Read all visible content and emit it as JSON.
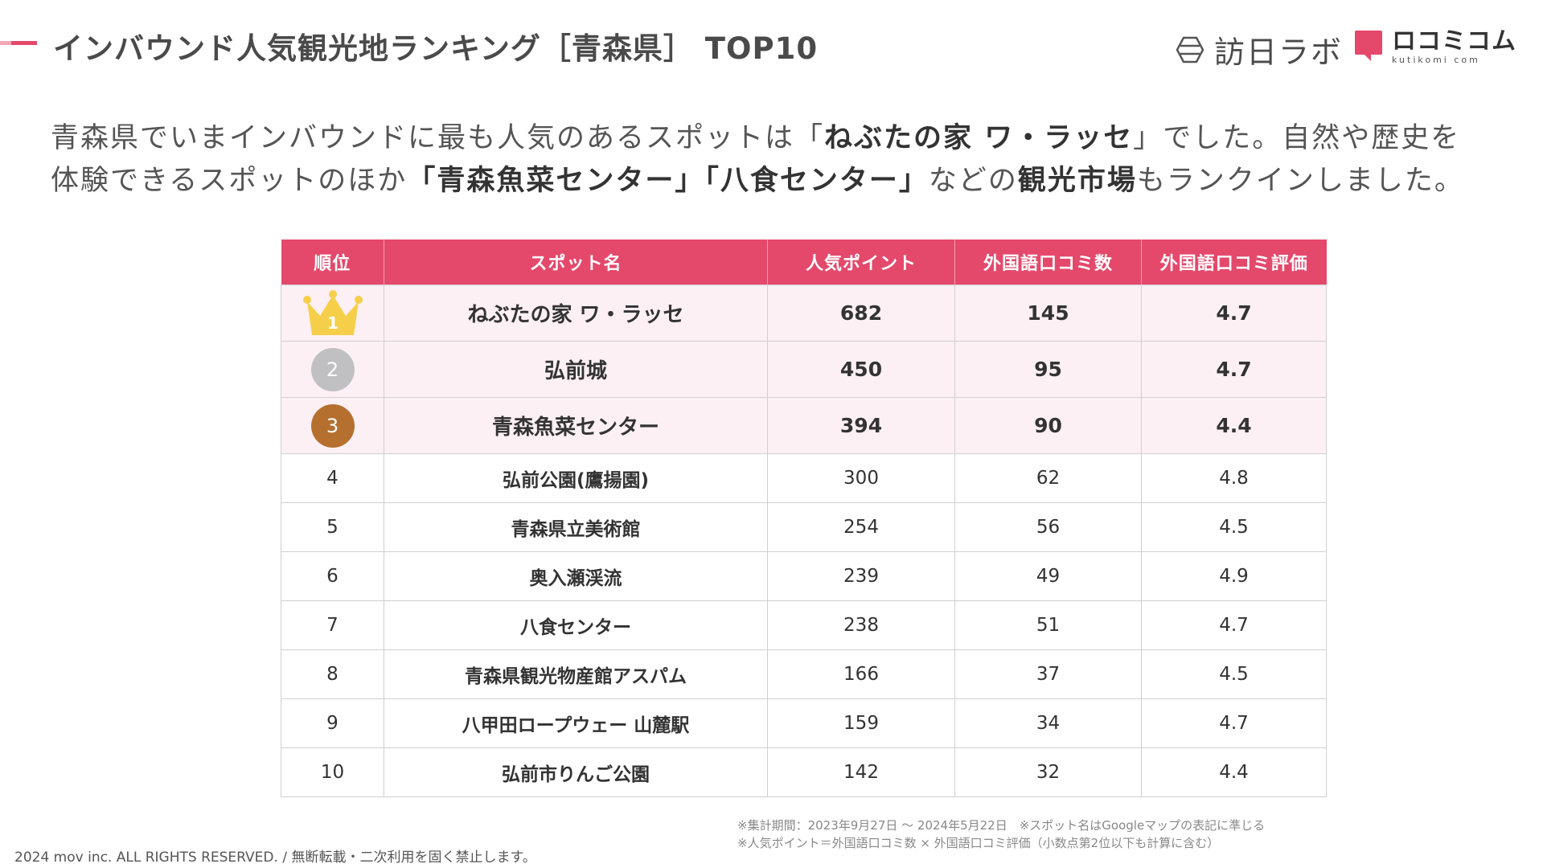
{
  "header": {
    "title": "インバウンド人気観光地ランキング［青森県］ TOP10",
    "logo_text": "訪日ラボ",
    "brand_main": "ロコミコム",
    "brand_sub": "kutikomi com",
    "accent_color": "#e4496c"
  },
  "lead": {
    "l1_a": "青森県でいまインバウンドに最も人気のあるスポットは「",
    "l1_b": "ねぶたの家 ワ・ラッセ",
    "l1_c": "」でした。自然や歴史を",
    "l2_a": "体験できるスポットのほか",
    "l2_b": "「青森魚菜センター」「八食センター」",
    "l2_c": "などの",
    "l2_d": "観光市場",
    "l2_e": "もランクインしました。"
  },
  "table": {
    "headers": [
      "順位",
      "スポット名",
      "人気ポイント",
      "外国語口コミ数",
      "外国語口コミ評価"
    ],
    "rows": [
      {
        "rank": "1",
        "name": "ねぶたの家 ワ・ラッセ",
        "points": "682",
        "reviews": "145",
        "rating": "4.7"
      },
      {
        "rank": "2",
        "name": "弘前城",
        "points": "450",
        "reviews": "95",
        "rating": "4.7"
      },
      {
        "rank": "3",
        "name": "青森魚菜センター",
        "points": "394",
        "reviews": "90",
        "rating": "4.4"
      },
      {
        "rank": "4",
        "name": "弘前公園(鷹揚園)",
        "points": "300",
        "reviews": "62",
        "rating": "4.8"
      },
      {
        "rank": "5",
        "name": "青森県立美術館",
        "points": "254",
        "reviews": "56",
        "rating": "4.5"
      },
      {
        "rank": "6",
        "name": "奥入瀬渓流",
        "points": "239",
        "reviews": "49",
        "rating": "4.9"
      },
      {
        "rank": "7",
        "name": "八食センター",
        "points": "238",
        "reviews": "51",
        "rating": "4.7"
      },
      {
        "rank": "8",
        "name": "青森県観光物産館アスパム",
        "points": "166",
        "reviews": "37",
        "rating": "4.5"
      },
      {
        "rank": "9",
        "name": "八甲田ロープウェー 山麓駅",
        "points": "159",
        "reviews": "34",
        "rating": "4.7"
      },
      {
        "rank": "10",
        "name": "弘前市りんご公園",
        "points": "142",
        "reviews": "32",
        "rating": "4.4"
      }
    ]
  },
  "notes": {
    "line1": "※集計期間：2023年9月27日 〜 2024年5月22日　※スポット名はGoogleマップの表記に準じる",
    "line2": "※人気ポイント＝外国語口コミ数 × 外国語口コミ評価（小数点第2位以下も計算に含む）"
  },
  "footer": {
    "copyright": "2024 mov inc. ALL RIGHTS RESERVED. / 無断転載・二次利用を固く禁止します。"
  }
}
